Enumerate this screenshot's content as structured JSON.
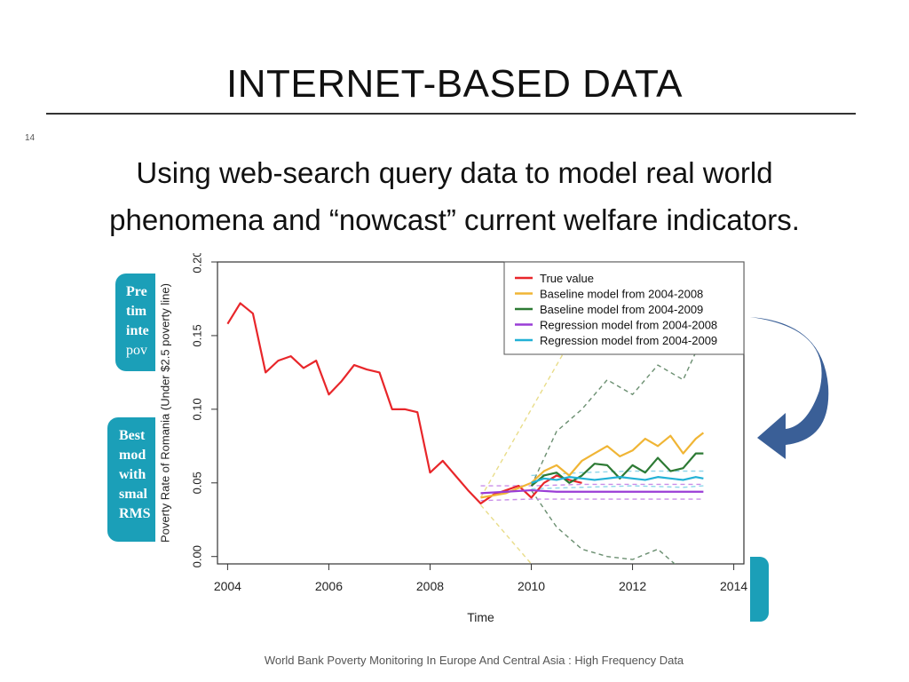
{
  "slide": {
    "title": "INTERNET-BASED DATA",
    "number": "14",
    "subtitle_line1": "Using web-search query data to model real world",
    "subtitle_line2": "phenomena and “nowcast” current welfare indicators.",
    "footer": "World Bank Poverty Monitoring In Europe And Central Asia : High Frequency Data"
  },
  "callouts": {
    "left1": [
      "Pre",
      "tim",
      "inte",
      "pov"
    ],
    "left2": [
      "Best",
      "mod",
      "with",
      "smal",
      "RMS"
    ]
  },
  "colors": {
    "accent_teal": "#1b9fb8",
    "arrow_blue": "#3a5f97",
    "true_value": "#e8262a",
    "baseline_0408": "#f0b535",
    "baseline_0409": "#2d7a34",
    "regression_0408": "#9a3dd6",
    "regression_0409": "#22b1d6"
  },
  "chart_data": {
    "type": "line",
    "xlabel": "Time",
    "ylabel": "Poverty Rate of Romania (Under $2.5 poverty line)",
    "xlim": [
      2003.8,
      2014.2
    ],
    "ylim": [
      -0.005,
      0.2
    ],
    "x_ticks": [
      "2004",
      "2006",
      "2008",
      "2010",
      "2012",
      "2014"
    ],
    "y_ticks": [
      "0.00",
      "0.05",
      "0.10",
      "0.15",
      "0.20"
    ],
    "legend_position": "top-right",
    "series": [
      {
        "name": "True value",
        "color": "#e8262a",
        "x": [
          2004.0,
          2004.25,
          2004.5,
          2004.75,
          2005.0,
          2005.25,
          2005.5,
          2005.75,
          2006.0,
          2006.25,
          2006.5,
          2006.75,
          2007.0,
          2007.25,
          2007.5,
          2007.75,
          2008.0,
          2008.25,
          2008.5,
          2008.75,
          2009.0,
          2009.25,
          2009.5,
          2009.75,
          2010.0,
          2010.25,
          2010.5,
          2010.75,
          2011.0
        ],
        "y": [
          0.158,
          0.172,
          0.165,
          0.125,
          0.133,
          0.136,
          0.128,
          0.133,
          0.11,
          0.119,
          0.13,
          0.127,
          0.125,
          0.1,
          0.1,
          0.098,
          0.057,
          0.065,
          0.055,
          0.045,
          0.036,
          0.042,
          0.045,
          0.048,
          0.04,
          0.05,
          0.055,
          0.052,
          0.05
        ]
      },
      {
        "name": "Baseline model from 2004-2008",
        "color": "#f0b535",
        "x": [
          2009.0,
          2009.5,
          2010.0,
          2010.25,
          2010.5,
          2010.75,
          2011.0,
          2011.25,
          2011.5,
          2011.75,
          2012.0,
          2012.25,
          2012.5,
          2012.75,
          2013.0,
          2013.25,
          2013.4
        ],
        "y": [
          0.04,
          0.043,
          0.05,
          0.058,
          0.062,
          0.055,
          0.065,
          0.07,
          0.075,
          0.068,
          0.072,
          0.08,
          0.075,
          0.082,
          0.07,
          0.08,
          0.084
        ]
      },
      {
        "name": "Baseline model from 2004-2009",
        "color": "#2d7a34",
        "x": [
          2010.0,
          2010.25,
          2010.5,
          2010.75,
          2011.0,
          2011.25,
          2011.5,
          2011.75,
          2012.0,
          2012.25,
          2012.5,
          2012.75,
          2013.0,
          2013.25,
          2013.4
        ],
        "y": [
          0.048,
          0.055,
          0.057,
          0.05,
          0.055,
          0.063,
          0.062,
          0.053,
          0.062,
          0.057,
          0.067,
          0.058,
          0.06,
          0.07,
          0.07
        ]
      },
      {
        "name": "Regression model from 2004-2008",
        "color": "#9a3dd6",
        "x": [
          2009.0,
          2009.5,
          2010.0,
          2010.5,
          2011.0,
          2012.0,
          2013.0,
          2013.4
        ],
        "y": [
          0.043,
          0.044,
          0.045,
          0.044,
          0.044,
          0.044,
          0.044,
          0.044
        ]
      },
      {
        "name": "Regression model from 2004-2009",
        "color": "#22b1d6",
        "x": [
          2010.0,
          2010.25,
          2010.5,
          2010.75,
          2011.0,
          2011.25,
          2011.5,
          2011.75,
          2012.0,
          2012.25,
          2012.5,
          2012.75,
          2013.0,
          2013.25,
          2013.4
        ],
        "y": [
          0.05,
          0.053,
          0.052,
          0.054,
          0.053,
          0.052,
          0.053,
          0.054,
          0.053,
          0.052,
          0.054,
          0.053,
          0.052,
          0.054,
          0.053
        ]
      }
    ]
  }
}
